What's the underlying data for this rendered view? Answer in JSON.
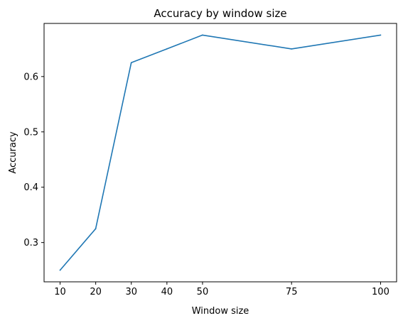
{
  "chart_data": {
    "type": "line",
    "title": "Accuracy by window size",
    "xlabel": "Window size",
    "ylabel": "Accuracy",
    "x": [
      10,
      20,
      30,
      40,
      50,
      75,
      100
    ],
    "series": [
      {
        "values": [
          0.25,
          0.325,
          0.625,
          0.65,
          0.675,
          0.65,
          0.675
        ],
        "color": "#1f77b4"
      }
    ],
    "xticks": [
      10,
      20,
      30,
      40,
      50,
      75,
      100
    ],
    "xtick_labels": [
      "10",
      "20",
      "30",
      "40",
      "50",
      "75",
      "100"
    ],
    "yticks": [
      0.3,
      0.4,
      0.5,
      0.6
    ],
    "ytick_labels": [
      "0.3",
      "0.4",
      "0.5",
      "0.6"
    ],
    "xlim": [
      5.5,
      104.5
    ],
    "ylim": [
      0.229,
      0.696
    ],
    "grid": false,
    "legend": "none"
  }
}
